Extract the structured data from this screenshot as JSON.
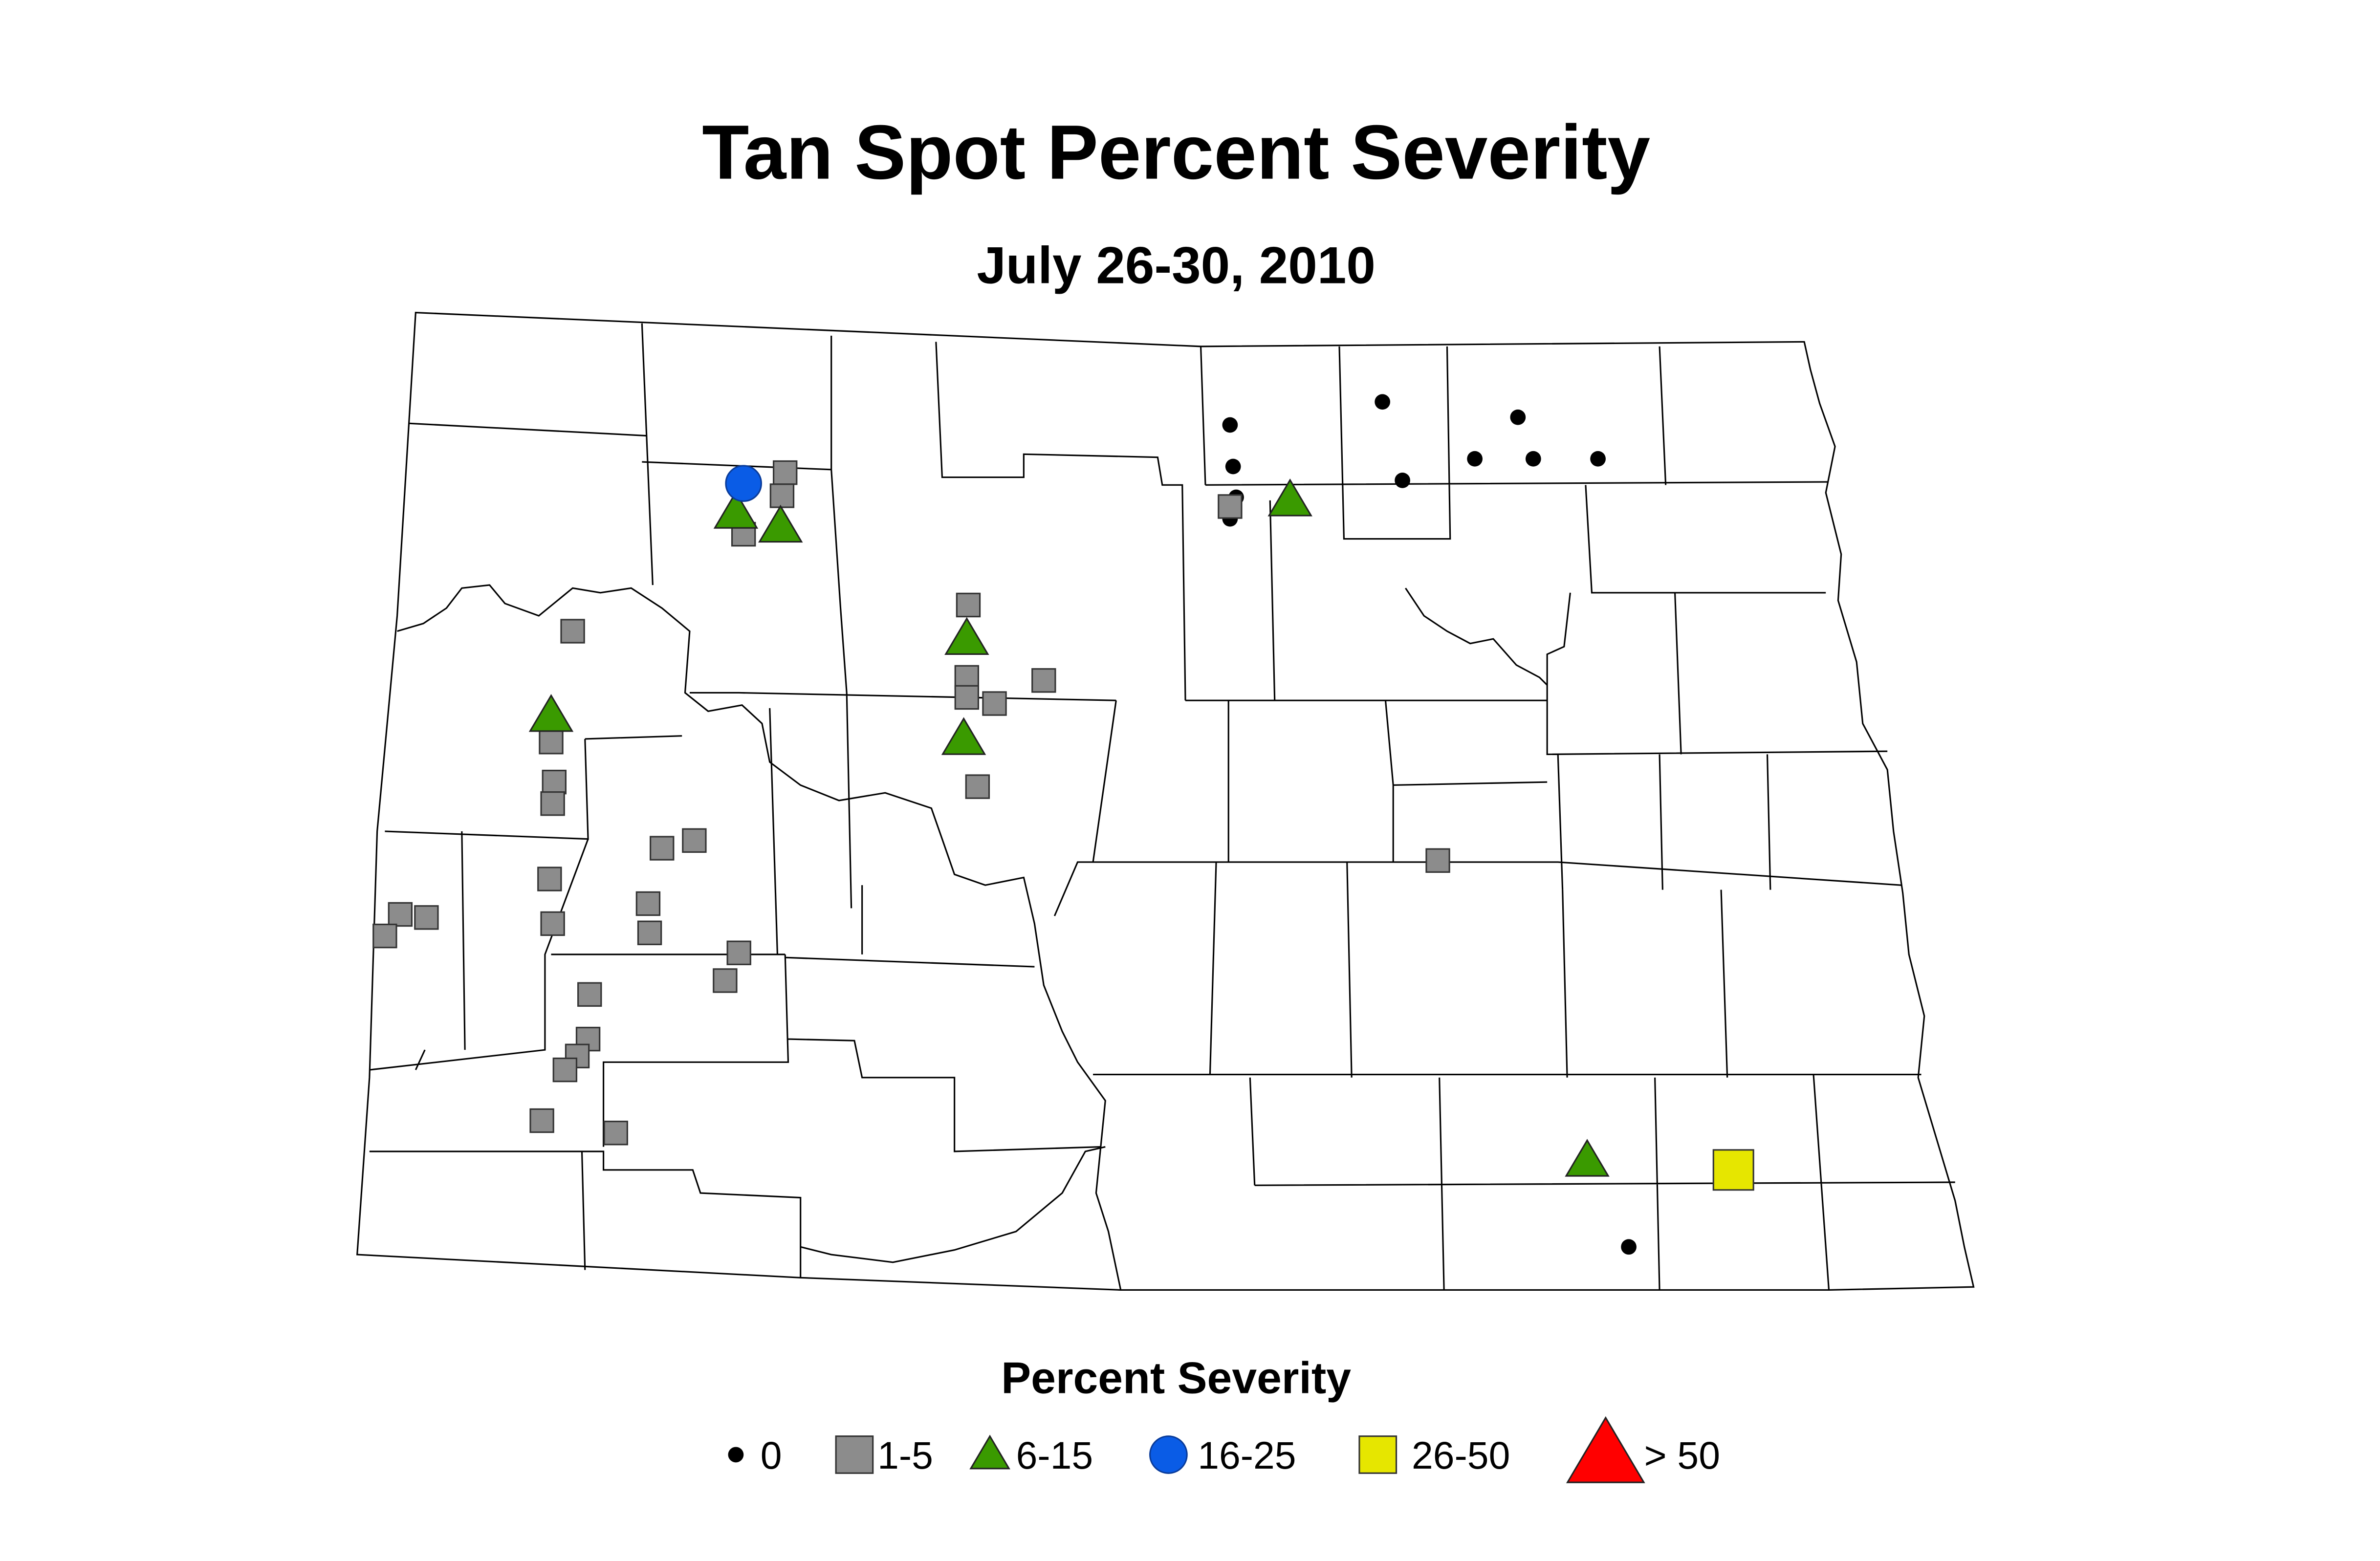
{
  "title": "Tan Spot Percent Severity",
  "subtitle": "July 26-30, 2010",
  "legend": {
    "title": "Percent Severity",
    "items": [
      {
        "label": "0",
        "color": "#000000"
      },
      {
        "label": "1-5",
        "color": "#8c8c8c"
      },
      {
        "label": "6-15",
        "color": "#3a9a00"
      },
      {
        "label": "16-25",
        "color": "#0a5ce6"
      },
      {
        "label": "26-50",
        "color": "#e6e600"
      },
      {
        "label": "> 50",
        "color": "#ff0000"
      }
    ]
  }
}
